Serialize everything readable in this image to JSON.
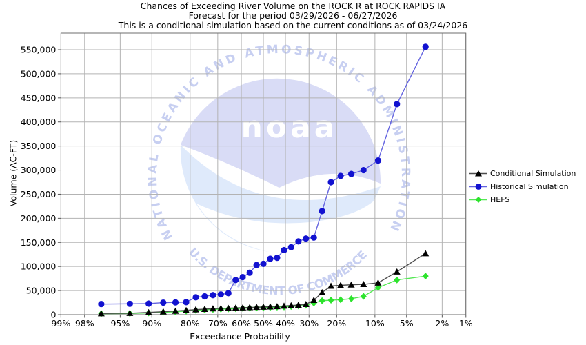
{
  "title": {
    "line1": "Chances of Exceeding River Volume on the ROCK R at ROCK RAPIDS IA",
    "line2": "Forecast for the period 03/29/2026 - 06/27/2026",
    "line3": "This is a conditional simulation based on the current conditions as of 03/24/2026"
  },
  "axes": {
    "x_label": "Exceedance Probability",
    "y_label": "Volume (AC-FT)"
  },
  "legend": {
    "items": [
      {
        "label": "Conditional Simulation",
        "marker": "triangle",
        "color": "#000000",
        "line_color": "#4d4d4d"
      },
      {
        "label": "Historical Simulation",
        "marker": "circle",
        "color": "#1212d0",
        "line_color": "#6363e0"
      },
      {
        "label": "HEFS",
        "marker": "diamond",
        "color": "#2de32d",
        "line_color": "#55e855"
      }
    ]
  },
  "watermark": {
    "logo_text": "noaa",
    "org_top": "NATIONAL OCEANIC AND ATMOSPHERIC ADMINISTRATION",
    "org_bottom": "U.S. DEPARTMENT OF COMMERCE",
    "circle_color": "#d9dcf6",
    "sea_color": "#dfeafb",
    "text_color": "#c7cff1"
  },
  "chart_data": {
    "type": "line",
    "title": "Chances of Exceeding River Volume on the ROCK R at ROCK RAPIDS IA",
    "xlabel": "Exceedance Probability",
    "ylabel": "Volume (AC-FT)",
    "x_scale": "probit-reversed",
    "grid": true,
    "legend_position": "right",
    "x_ticks": [
      "99%",
      "98%",
      "95%",
      "90%",
      "80%",
      "70%",
      "60%",
      "50%",
      "40%",
      "30%",
      "20%",
      "10%",
      "5%",
      "2%",
      "1%"
    ],
    "x_tick_values": [
      99,
      98,
      95,
      90,
      80,
      70,
      60,
      50,
      40,
      30,
      20,
      10,
      5,
      2,
      1
    ],
    "y_tick_values": [
      0,
      50000,
      100000,
      150000,
      200000,
      250000,
      300000,
      350000,
      400000,
      450000,
      500000,
      550000
    ],
    "y_tick_labels": [
      "0",
      "50,000",
      "100,000",
      "150,000",
      "200,000",
      "250,000",
      "300,000",
      "350,000",
      "400,000",
      "450,000",
      "500,000",
      "550,000"
    ],
    "ylim": [
      0,
      584000
    ],
    "x_percent": [
      96.875,
      93.75,
      90.625,
      87.5,
      84.375,
      81.25,
      78.125,
      75,
      71.875,
      68.75,
      65.625,
      62.5,
      59.375,
      56.25,
      53.125,
      50,
      46.875,
      43.75,
      40.625,
      37.5,
      34.375,
      31.25,
      28.125,
      25,
      21.875,
      18.75,
      15.625,
      12.5,
      9.375,
      6.25,
      3.125
    ],
    "series": [
      {
        "name": "HEFS",
        "marker": "diamond",
        "marker_color": "#2de32d",
        "line_color": "#55e855",
        "values": [
          2000,
          2500,
          3500,
          5000,
          6000,
          7500,
          9000,
          10000,
          11000,
          11500,
          12000,
          12500,
          13000,
          13500,
          14000,
          14500,
          15000,
          15500,
          16000,
          17000,
          18000,
          19500,
          24000,
          29000,
          30000,
          31000,
          33000,
          38000,
          56000,
          72000,
          80000
        ]
      },
      {
        "name": "Conditional Simulation",
        "marker": "triangle",
        "marker_color": "#000000",
        "line_color": "#4d4d4d",
        "values": [
          2400,
          3000,
          4700,
          6200,
          7600,
          9000,
          10500,
          11500,
          12500,
          13000,
          13500,
          14000,
          14500,
          15000,
          15500,
          16000,
          16500,
          17000,
          18000,
          19000,
          20000,
          21500,
          30000,
          46000,
          59500,
          61000,
          62000,
          63000,
          66000,
          89000,
          127000
        ]
      },
      {
        "name": "Historical Simulation",
        "marker": "circle",
        "marker_color": "#1212d0",
        "line_color": "#6363e0",
        "values": [
          22000,
          22500,
          23000,
          25000,
          25500,
          26000,
          36000,
          38000,
          40500,
          42000,
          44500,
          72000,
          78000,
          87000,
          103000,
          105500,
          116000,
          118000,
          134000,
          140000,
          152000,
          158000,
          160000,
          215000,
          275000,
          288000,
          292000,
          300000,
          320000,
          437000,
          556000
        ]
      }
    ]
  }
}
